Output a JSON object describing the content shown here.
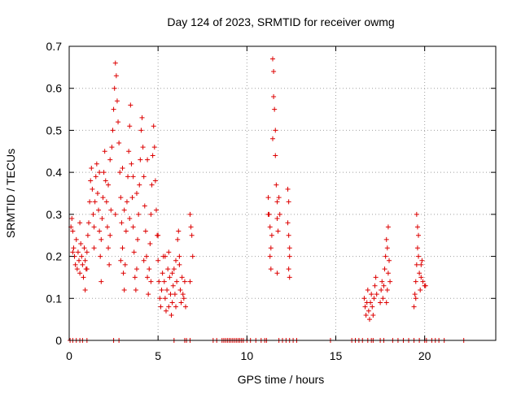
{
  "chart_data": {
    "type": "scatter",
    "title": "Day 124 of 2023, SRMTID for receiver owmg",
    "xlabel": "GPS time / hours",
    "ylabel": "SRMTID / TECUs",
    "xlim": [
      0,
      24
    ],
    "ylim": [
      0,
      0.7
    ],
    "xticks": [
      0,
      5,
      10,
      15,
      20
    ],
    "xtick_labels": [
      "0",
      "5",
      "10",
      "15",
      "20"
    ],
    "yticks": [
      0,
      0.1,
      0.2,
      0.3,
      0.4,
      0.5,
      0.6,
      0.7
    ],
    "ytick_labels": [
      "0",
      "0.1",
      "0.2",
      "0.3",
      "0.4",
      "0.5",
      "0.6",
      "0.7"
    ],
    "grid": true,
    "legend": "none",
    "marker": "+",
    "color": "#dd0000",
    "series": [
      {
        "name": "SRMTID",
        "points": [
          [
            0.1,
            0.27
          ],
          [
            0.15,
            0.29
          ],
          [
            0.2,
            0.26
          ],
          [
            0.25,
            0.22
          ],
          [
            0.3,
            0.2
          ],
          [
            0.35,
            0.18
          ],
          [
            0.4,
            0.24
          ],
          [
            0.45,
            0.17
          ],
          [
            0.5,
            0.21
          ],
          [
            0.55,
            0.19
          ],
          [
            0.6,
            0.16
          ],
          [
            0.65,
            0.23
          ],
          [
            0.7,
            0.2
          ],
          [
            0.75,
            0.18
          ],
          [
            0.8,
            0.15
          ],
          [
            0.85,
            0.22
          ],
          [
            0.9,
            0.19
          ],
          [
            0.95,
            0.17
          ],
          [
            1.0,
            0.21
          ],
          [
            1.05,
            0.25
          ],
          [
            1.1,
            0.28
          ],
          [
            1.15,
            0.33
          ],
          [
            1.2,
            0.38
          ],
          [
            1.25,
            0.41
          ],
          [
            1.3,
            0.36
          ],
          [
            1.35,
            0.3
          ],
          [
            1.4,
            0.27
          ],
          [
            1.45,
            0.33
          ],
          [
            1.5,
            0.39
          ],
          [
            1.55,
            0.42
          ],
          [
            1.6,
            0.35
          ],
          [
            1.65,
            0.31
          ],
          [
            1.7,
            0.26
          ],
          [
            1.75,
            0.2
          ],
          [
            1.8,
            0.24
          ],
          [
            1.85,
            0.29
          ],
          [
            1.9,
            0.34
          ],
          [
            1.95,
            0.4
          ],
          [
            2.0,
            0.45
          ],
          [
            2.05,
            0.38
          ],
          [
            2.1,
            0.33
          ],
          [
            2.15,
            0.27
          ],
          [
            2.2,
            0.22
          ],
          [
            2.25,
            0.18
          ],
          [
            2.3,
            0.25
          ],
          [
            2.35,
            0.31
          ],
          [
            2.4,
            0.46
          ],
          [
            2.45,
            0.5
          ],
          [
            2.5,
            0.55
          ],
          [
            2.55,
            0.6
          ],
          [
            2.6,
            0.66
          ],
          [
            2.65,
            0.63
          ],
          [
            2.7,
            0.57
          ],
          [
            2.75,
            0.52
          ],
          [
            2.8,
            0.47
          ],
          [
            2.85,
            0.4
          ],
          [
            2.9,
            0.34
          ],
          [
            2.95,
            0.28
          ],
          [
            3.0,
            0.22
          ],
          [
            3.05,
            0.16
          ],
          [
            3.1,
            0.12
          ],
          [
            3.15,
            0.18
          ],
          [
            3.2,
            0.26
          ],
          [
            3.25,
            0.33
          ],
          [
            3.3,
            0.39
          ],
          [
            3.35,
            0.45
          ],
          [
            3.4,
            0.51
          ],
          [
            3.45,
            0.56
          ],
          [
            3.5,
            0.42
          ],
          [
            3.55,
            0.34
          ],
          [
            3.6,
            0.27
          ],
          [
            3.65,
            0.21
          ],
          [
            3.7,
            0.15
          ],
          [
            3.75,
            0.12
          ],
          [
            3.8,
            0.17
          ],
          [
            3.85,
            0.24
          ],
          [
            3.9,
            0.3
          ],
          [
            3.95,
            0.37
          ],
          [
            4.0,
            0.43
          ],
          [
            4.05,
            0.5
          ],
          [
            4.1,
            0.53
          ],
          [
            4.15,
            0.46
          ],
          [
            4.2,
            0.39
          ],
          [
            4.25,
            0.32
          ],
          [
            4.3,
            0.26
          ],
          [
            4.35,
            0.2
          ],
          [
            4.4,
            0.15
          ],
          [
            4.45,
            0.11
          ],
          [
            4.5,
            0.17
          ],
          [
            4.55,
            0.23
          ],
          [
            4.6,
            0.3
          ],
          [
            4.65,
            0.37
          ],
          [
            4.7,
            0.44
          ],
          [
            4.75,
            0.51
          ],
          [
            4.8,
            0.46
          ],
          [
            4.85,
            0.38
          ],
          [
            4.9,
            0.31
          ],
          [
            4.95,
            0.25
          ],
          [
            5.0,
            0.19
          ],
          [
            5.05,
            0.14
          ],
          [
            5.1,
            0.1
          ],
          [
            5.15,
            0.08
          ],
          [
            5.2,
            0.12
          ],
          [
            5.25,
            0.16
          ],
          [
            5.3,
            0.2
          ],
          [
            5.35,
            0.14
          ],
          [
            5.4,
            0.1
          ],
          [
            5.45,
            0.07
          ],
          [
            5.5,
            0.12
          ],
          [
            5.55,
            0.17
          ],
          [
            5.6,
            0.21
          ],
          [
            5.65,
            0.15
          ],
          [
            5.7,
            0.11
          ],
          [
            5.75,
            0.06
          ],
          [
            5.8,
            0.09
          ],
          [
            5.85,
            0.13
          ],
          [
            5.9,
            0.17
          ],
          [
            5.95,
            0.11
          ],
          [
            6.0,
            0.08
          ],
          [
            6.05,
            0.14
          ],
          [
            6.1,
            0.24
          ],
          [
            6.15,
            0.26
          ],
          [
            6.2,
            0.18
          ],
          [
            6.25,
            0.12
          ],
          [
            6.3,
            0.09
          ],
          [
            6.35,
            0.15
          ],
          [
            6.4,
            0.11
          ],
          [
            6.45,
            0.1
          ],
          [
            6.5,
            0.14
          ],
          [
            6.55,
            0.08
          ],
          [
            0.2,
            0.21
          ],
          [
            0.6,
            0.28
          ],
          [
            1.0,
            0.17
          ],
          [
            1.4,
            0.22
          ],
          [
            1.8,
            0.14
          ],
          [
            2.2,
            0.37
          ],
          [
            2.6,
            0.3
          ],
          [
            3.0,
            0.41
          ],
          [
            3.4,
            0.29
          ],
          [
            3.8,
            0.35
          ],
          [
            4.2,
            0.19
          ],
          [
            4.6,
            0.14
          ],
          [
            5.0,
            0.25
          ],
          [
            5.4,
            0.2
          ],
          [
            5.8,
            0.16
          ],
          [
            6.2,
            0.2
          ],
          [
            0.9,
            0.12
          ],
          [
            1.7,
            0.4
          ],
          [
            2.9,
            0.19
          ],
          [
            3.6,
            0.39
          ],
          [
            4.4,
            0.43
          ],
          [
            5.6,
            0.08
          ],
          [
            6.0,
            0.19
          ],
          [
            2.3,
            0.43
          ],
          [
            3.1,
            0.31
          ],
          [
            6.8,
            0.3
          ],
          [
            6.85,
            0.27
          ],
          [
            6.9,
            0.25
          ],
          [
            6.95,
            0.2
          ],
          [
            6.8,
            0.14
          ],
          [
            11.2,
            0.34
          ],
          [
            11.25,
            0.3
          ],
          [
            11.3,
            0.27
          ],
          [
            11.35,
            0.22
          ],
          [
            11.3,
            0.2
          ],
          [
            11.35,
            0.17
          ],
          [
            11.4,
            0.25
          ],
          [
            11.45,
            0.48
          ],
          [
            11.5,
            0.58
          ],
          [
            11.45,
            0.67
          ],
          [
            11.5,
            0.64
          ],
          [
            11.55,
            0.55
          ],
          [
            11.6,
            0.5
          ],
          [
            11.6,
            0.44
          ],
          [
            11.65,
            0.37
          ],
          [
            11.7,
            0.33
          ],
          [
            11.7,
            0.29
          ],
          [
            11.75,
            0.26
          ],
          [
            11.7,
            0.16
          ],
          [
            11.2,
            0.3
          ],
          [
            11.8,
            0.34
          ],
          [
            11.85,
            0.3
          ],
          [
            12.3,
            0.36
          ],
          [
            12.35,
            0.33
          ],
          [
            12.3,
            0.28
          ],
          [
            12.35,
            0.25
          ],
          [
            12.4,
            0.22
          ],
          [
            12.4,
            0.2
          ],
          [
            12.35,
            0.17
          ],
          [
            12.4,
            0.15
          ],
          [
            16.6,
            0.1
          ],
          [
            16.65,
            0.08
          ],
          [
            16.7,
            0.06
          ],
          [
            16.75,
            0.09
          ],
          [
            16.8,
            0.12
          ],
          [
            16.85,
            0.07
          ],
          [
            16.9,
            0.05
          ],
          [
            16.95,
            0.09
          ],
          [
            17.0,
            0.11
          ],
          [
            17.05,
            0.08
          ],
          [
            17.1,
            0.06
          ],
          [
            17.15,
            0.1
          ],
          [
            17.2,
            0.13
          ],
          [
            17.25,
            0.15
          ],
          [
            17.3,
            0.11
          ],
          [
            17.5,
            0.09
          ],
          [
            17.55,
            0.12
          ],
          [
            17.6,
            0.14
          ],
          [
            17.65,
            0.1
          ],
          [
            17.7,
            0.13
          ],
          [
            17.75,
            0.17
          ],
          [
            17.8,
            0.2
          ],
          [
            17.85,
            0.24
          ],
          [
            17.9,
            0.22
          ],
          [
            17.95,
            0.16
          ],
          [
            17.9,
            0.12
          ],
          [
            17.85,
            0.09
          ],
          [
            18.0,
            0.19
          ],
          [
            18.05,
            0.14
          ],
          [
            17.95,
            0.27
          ],
          [
            19.4,
            0.08
          ],
          [
            19.45,
            0.11
          ],
          [
            19.5,
            0.14
          ],
          [
            19.55,
            0.18
          ],
          [
            19.6,
            0.22
          ],
          [
            19.6,
            0.27
          ],
          [
            19.55,
            0.3
          ],
          [
            19.65,
            0.2
          ],
          [
            19.7,
            0.16
          ],
          [
            19.75,
            0.12
          ],
          [
            19.8,
            0.18
          ],
          [
            19.85,
            0.19
          ],
          [
            19.9,
            0.14
          ],
          [
            20.0,
            0.13
          ],
          [
            20.05,
            0.13
          ],
          [
            19.65,
            0.25
          ],
          [
            19.5,
            0.1
          ],
          [
            19.8,
            0.15
          ],
          [
            0.05,
            0
          ],
          [
            0.2,
            0
          ],
          [
            0.4,
            0
          ],
          [
            0.6,
            0
          ],
          [
            0.75,
            0
          ],
          [
            1.0,
            0
          ],
          [
            2.5,
            0
          ],
          [
            2.8,
            0
          ],
          [
            5.9,
            0
          ],
          [
            6.5,
            0
          ],
          [
            6.6,
            0
          ],
          [
            6.8,
            0
          ],
          [
            8.1,
            0
          ],
          [
            8.3,
            0
          ],
          [
            8.6,
            0
          ],
          [
            8.7,
            0
          ],
          [
            8.8,
            0
          ],
          [
            8.9,
            0
          ],
          [
            9.0,
            0
          ],
          [
            9.1,
            0
          ],
          [
            9.2,
            0
          ],
          [
            9.3,
            0
          ],
          [
            9.4,
            0
          ],
          [
            9.5,
            0
          ],
          [
            9.6,
            0
          ],
          [
            9.7,
            0
          ],
          [
            9.8,
            0
          ],
          [
            10.0,
            0
          ],
          [
            10.2,
            0
          ],
          [
            10.5,
            0
          ],
          [
            10.8,
            0
          ],
          [
            11.0,
            0
          ],
          [
            11.1,
            0
          ],
          [
            11.8,
            0
          ],
          [
            12.0,
            0
          ],
          [
            12.2,
            0
          ],
          [
            12.4,
            0
          ],
          [
            12.6,
            0
          ],
          [
            12.8,
            0
          ],
          [
            14.7,
            0
          ],
          [
            15.9,
            0
          ],
          [
            16.1,
            0
          ],
          [
            16.3,
            0
          ],
          [
            16.5,
            0
          ],
          [
            16.8,
            0
          ],
          [
            17.0,
            0
          ],
          [
            17.1,
            0
          ],
          [
            17.5,
            0
          ],
          [
            17.7,
            0
          ],
          [
            18.2,
            0
          ],
          [
            18.5,
            0
          ],
          [
            18.8,
            0
          ],
          [
            19.1,
            0
          ],
          [
            19.4,
            0
          ],
          [
            19.7,
            0
          ],
          [
            20.0,
            0
          ],
          [
            20.1,
            0
          ],
          [
            20.4,
            0
          ],
          [
            20.6,
            0
          ],
          [
            20.8,
            0
          ],
          [
            21.1,
            0
          ],
          [
            22.2,
            0
          ]
        ]
      }
    ]
  }
}
